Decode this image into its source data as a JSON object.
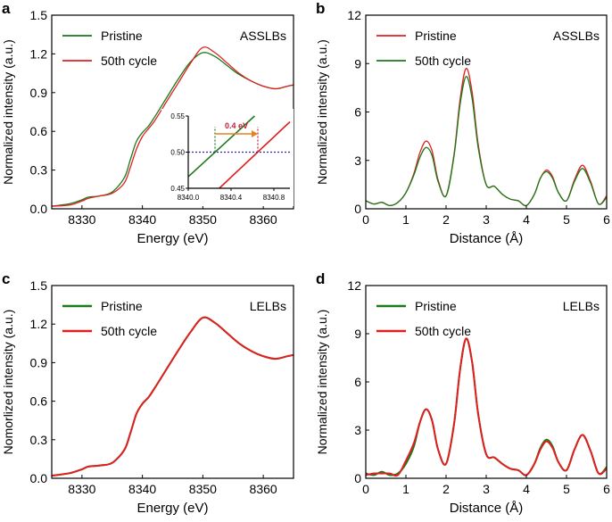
{
  "chart_data": [
    {
      "panel": "a",
      "type": "line",
      "title": "ASSLBs",
      "xlabel": "Energy (eV)",
      "ylabel": "Normalized intensity (a.u.)",
      "xlim": [
        8325,
        8365
      ],
      "ylim": [
        0,
        1.5
      ],
      "xticks": [
        "8330",
        "8340",
        "8350",
        "8360"
      ],
      "xtick_values": [
        8330,
        8340,
        8350,
        8360
      ],
      "yticks": [
        "0.0",
        "0.3",
        "0.6",
        "0.9",
        "1.2",
        "1.5"
      ],
      "ytick_values": [
        0,
        0.3,
        0.6,
        0.9,
        1.2,
        1.5
      ],
      "legend": "top-left",
      "x": [
        8325,
        8328,
        8330,
        8331,
        8333,
        8335,
        8337,
        8338,
        8339,
        8340,
        8341,
        8342,
        8344,
        8346,
        8348,
        8350,
        8352,
        8354,
        8356,
        8358,
        8360,
        8362,
        8364,
        8365
      ],
      "series": [
        {
          "name": "Pristine",
          "color": "#1a7a1a",
          "values": [
            0.02,
            0.04,
            0.07,
            0.09,
            0.1,
            0.13,
            0.24,
            0.38,
            0.52,
            0.59,
            0.64,
            0.71,
            0.86,
            1.01,
            1.14,
            1.21,
            1.18,
            1.11,
            1.04,
            0.99,
            0.95,
            0.93,
            0.95,
            0.96
          ]
        },
        {
          "name": "50th cycle",
          "color": "#e02020",
          "values": [
            0.02,
            0.03,
            0.06,
            0.08,
            0.1,
            0.12,
            0.2,
            0.32,
            0.46,
            0.56,
            0.62,
            0.68,
            0.83,
            0.98,
            1.13,
            1.25,
            1.21,
            1.13,
            1.05,
            0.99,
            0.95,
            0.93,
            0.95,
            0.96
          ]
        }
      ],
      "inset": {
        "xlim": [
          8340.0,
          8340.95
        ],
        "ylim": [
          0.45,
          0.55
        ],
        "xticks": [
          "8340.0",
          "8340.4",
          "8340.8"
        ],
        "xtick_values": [
          8340.0,
          8340.4,
          8340.8
        ],
        "yticks": [
          "0.45",
          "0.50",
          "0.55"
        ],
        "ytick_values": [
          0.45,
          0.5,
          0.55
        ],
        "reference_line": 0.5,
        "annotation": "0.4 eV",
        "green_cross": 8340.25,
        "red_cross": 8340.65,
        "series": [
          {
            "name": "Pristine",
            "x": [
              8340.0,
              8340.62
            ],
            "values": [
              0.466,
              0.55
            ]
          },
          {
            "name": "50th cycle",
            "x": [
              8340.29,
              8340.95
            ],
            "values": [
              0.45,
              0.542
            ]
          }
        ]
      }
    },
    {
      "panel": "b",
      "type": "line",
      "title": "ASSLBs",
      "xlabel": "Distance (Å)",
      "ylabel": "Normalized intensity (a.u.)",
      "xlim": [
        0,
        6
      ],
      "ylim": [
        0,
        12
      ],
      "xticks": [
        "0",
        "1",
        "2",
        "3",
        "4",
        "5",
        "6"
      ],
      "xtick_values": [
        0,
        1,
        2,
        3,
        4,
        5,
        6
      ],
      "yticks": [
        "0",
        "3",
        "6",
        "9",
        "12"
      ],
      "ytick_values": [
        0,
        3,
        6,
        9,
        12
      ],
      "legend": "top-left",
      "x": [
        0,
        0.2,
        0.4,
        0.6,
        0.8,
        1.0,
        1.2,
        1.35,
        1.5,
        1.65,
        1.8,
        2.0,
        2.2,
        2.35,
        2.5,
        2.65,
        2.8,
        3.0,
        3.2,
        3.4,
        3.6,
        3.8,
        4.0,
        4.2,
        4.35,
        4.5,
        4.65,
        4.8,
        5.0,
        5.2,
        5.4,
        5.6,
        5.8,
        6.0
      ],
      "series": [
        {
          "name": "Pristine",
          "color": "#e02020",
          "values": [
            0.5,
            0.3,
            0.4,
            0.2,
            0.4,
            1.0,
            2.2,
            3.5,
            4.2,
            3.6,
            1.8,
            0.8,
            3.4,
            6.8,
            8.7,
            7.2,
            4.0,
            1.5,
            1.4,
            0.9,
            0.6,
            0.5,
            0.2,
            0.9,
            1.9,
            2.4,
            2.0,
            1.0,
            0.5,
            1.8,
            2.7,
            1.7,
            0.3,
            0.8
          ]
        },
        {
          "name": "50th cycle",
          "color": "#1a7a1a",
          "values": [
            0.5,
            0.3,
            0.4,
            0.2,
            0.4,
            1.0,
            2.1,
            3.2,
            3.8,
            3.3,
            1.7,
            0.8,
            3.3,
            6.5,
            8.2,
            6.8,
            3.8,
            1.5,
            1.4,
            0.9,
            0.6,
            0.5,
            0.2,
            0.9,
            1.9,
            2.3,
            1.9,
            1.0,
            0.5,
            1.7,
            2.5,
            1.6,
            0.3,
            0.7
          ]
        }
      ]
    },
    {
      "panel": "c",
      "type": "line",
      "title": "LELBs",
      "xlabel": "Energy (eV)",
      "ylabel": "Nomorlized intensity (a.u.)",
      "xlim": [
        8325,
        8365
      ],
      "ylim": [
        0,
        1.5
      ],
      "xticks": [
        "8330",
        "8340",
        "8350",
        "8360"
      ],
      "xtick_values": [
        8330,
        8340,
        8350,
        8360
      ],
      "yticks": [
        "0.0",
        "0.3",
        "0.6",
        "0.9",
        "1.2",
        "1.5"
      ],
      "ytick_values": [
        0,
        0.3,
        0.6,
        0.9,
        1.2,
        1.5
      ],
      "legend": "top-left",
      "x": [
        8325,
        8328,
        8330,
        8331,
        8333,
        8335,
        8337,
        8338,
        8339,
        8340,
        8341,
        8342,
        8344,
        8346,
        8348,
        8350,
        8352,
        8354,
        8356,
        8358,
        8360,
        8362,
        8364,
        8365
      ],
      "series": [
        {
          "name": "Pristine",
          "color": "#1a7a1a",
          "values": [
            0.02,
            0.04,
            0.07,
            0.09,
            0.1,
            0.12,
            0.22,
            0.35,
            0.5,
            0.58,
            0.63,
            0.7,
            0.85,
            1.0,
            1.14,
            1.25,
            1.21,
            1.13,
            1.05,
            0.99,
            0.95,
            0.93,
            0.95,
            0.96
          ]
        },
        {
          "name": "50th cycle",
          "color": "#e02020",
          "values": [
            0.02,
            0.04,
            0.07,
            0.09,
            0.1,
            0.12,
            0.22,
            0.35,
            0.5,
            0.58,
            0.63,
            0.7,
            0.85,
            1.0,
            1.14,
            1.25,
            1.21,
            1.13,
            1.05,
            0.99,
            0.95,
            0.93,
            0.95,
            0.96
          ]
        }
      ]
    },
    {
      "panel": "d",
      "type": "line",
      "title": "LELBs",
      "xlabel": "Distance (Å)",
      "ylabel": "Normalized intensity (a.u.)",
      "xlim": [
        0,
        6
      ],
      "ylim": [
        0,
        12
      ],
      "xticks": [
        "0",
        "1",
        "2",
        "3",
        "4",
        "5",
        "6"
      ],
      "xtick_values": [
        0,
        1,
        2,
        3,
        4,
        5,
        6
      ],
      "yticks": [
        "0",
        "3",
        "6",
        "9",
        "12"
      ],
      "ytick_values": [
        0,
        3,
        6,
        9,
        12
      ],
      "legend": "top-left",
      "x": [
        0,
        0.2,
        0.4,
        0.6,
        0.8,
        1.0,
        1.2,
        1.35,
        1.5,
        1.65,
        1.8,
        2.0,
        2.2,
        2.35,
        2.5,
        2.65,
        2.8,
        3.0,
        3.2,
        3.4,
        3.6,
        3.8,
        4.0,
        4.2,
        4.35,
        4.5,
        4.65,
        4.8,
        5.0,
        5.2,
        5.4,
        5.6,
        5.8,
        6.0
      ],
      "series": [
        {
          "name": "Pristine",
          "color": "#1a7a1a",
          "values": [
            0.3,
            0.2,
            0.4,
            0.2,
            0.3,
            0.9,
            2.0,
            3.5,
            4.3,
            3.6,
            1.8,
            0.9,
            3.4,
            6.8,
            8.7,
            7.2,
            4.0,
            1.5,
            1.3,
            0.9,
            0.6,
            0.5,
            0.2,
            0.9,
            1.9,
            2.4,
            2.0,
            1.0,
            0.5,
            1.8,
            2.7,
            1.7,
            0.3,
            0.7
          ]
        },
        {
          "name": "50th cycle",
          "color": "#e02020",
          "values": [
            0.2,
            0.3,
            0.3,
            0.3,
            0.2,
            1.1,
            2.2,
            3.5,
            4.3,
            3.6,
            1.8,
            0.9,
            3.4,
            6.8,
            8.7,
            7.2,
            4.0,
            1.5,
            1.3,
            0.9,
            0.6,
            0.5,
            0.2,
            0.9,
            1.8,
            2.3,
            1.9,
            1.0,
            0.5,
            1.8,
            2.7,
            1.7,
            0.3,
            0.6
          ]
        }
      ]
    }
  ]
}
